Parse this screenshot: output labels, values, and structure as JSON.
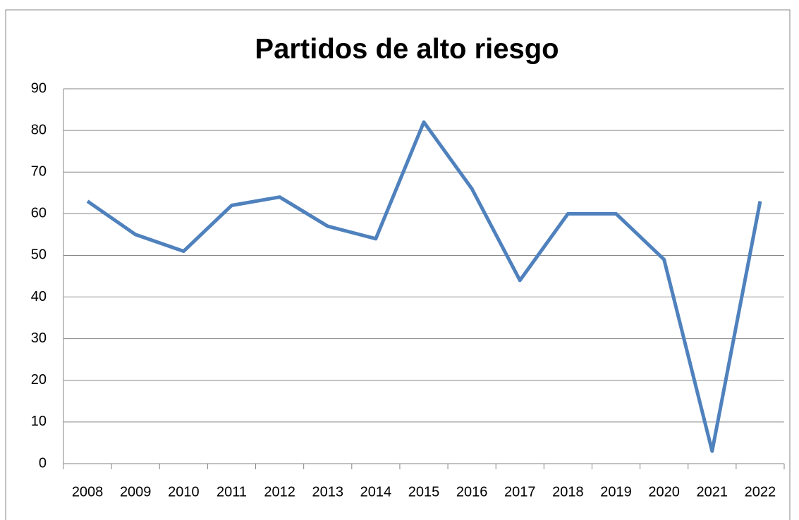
{
  "chart_data": {
    "type": "line",
    "title": "Partidos de alto riesgo",
    "categories": [
      "2008",
      "2009",
      "2010",
      "2011",
      "2012",
      "2013",
      "2014",
      "2015",
      "2016",
      "2017",
      "2018",
      "2019",
      "2020",
      "2021",
      "2022"
    ],
    "values": [
      63,
      55,
      51,
      62,
      64,
      57,
      54,
      82,
      66,
      44,
      60,
      60,
      49,
      3,
      63
    ],
    "color": "#4f81bd",
    "ylim": [
      0,
      90
    ],
    "yticks": [
      0,
      10,
      20,
      30,
      40,
      50,
      60,
      70,
      80,
      90
    ],
    "grid": true
  }
}
